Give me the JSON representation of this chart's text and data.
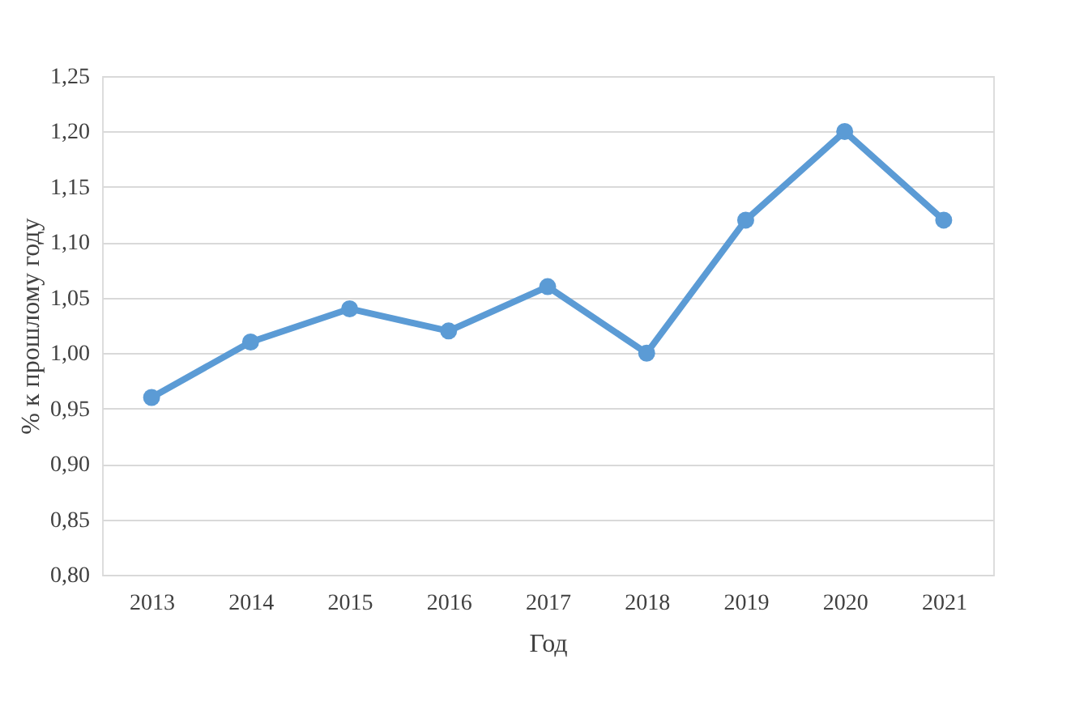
{
  "chart_data": {
    "type": "line",
    "xlabel": "Год",
    "ylabel": "% к прошлому году",
    "categories": [
      "2013",
      "2014",
      "2015",
      "2016",
      "2017",
      "2018",
      "2019",
      "2020",
      "2021"
    ],
    "series": [
      {
        "color": "#5b9bd5",
        "values": [
          0.96,
          1.01,
          1.04,
          1.02,
          1.06,
          1.0,
          1.12,
          1.2,
          1.12
        ]
      }
    ],
    "ylim": [
      0.8,
      1.25
    ],
    "yticks": [
      {
        "value": 0.8,
        "label": "0,80"
      },
      {
        "value": 0.85,
        "label": "0,85"
      },
      {
        "value": 0.9,
        "label": "0,90"
      },
      {
        "value": 0.95,
        "label": "0,95"
      },
      {
        "value": 1.0,
        "label": "1,00"
      },
      {
        "value": 1.05,
        "label": "1,05"
      },
      {
        "value": 1.1,
        "label": "1,10"
      },
      {
        "value": 1.15,
        "label": "1,15"
      },
      {
        "value": 1.2,
        "label": "1,20"
      },
      {
        "value": 1.25,
        "label": "1,25"
      }
    ],
    "grid": "y",
    "marker": "circle",
    "line_style": "solid"
  }
}
